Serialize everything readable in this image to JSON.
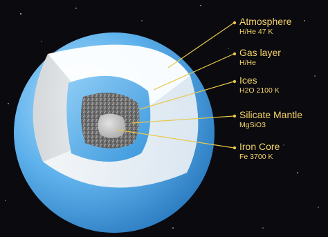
{
  "labels": [
    {
      "id": "atmosphere",
      "title": "Atmosphere",
      "sub": "H/He 47 K"
    },
    {
      "id": "gas-layer",
      "title": "Gas layer",
      "sub": "H/He"
    },
    {
      "id": "ices",
      "title": "Ices",
      "sub": "H2O 2100 K"
    },
    {
      "id": "silicate-mantle",
      "title": "Silicate Mantle",
      "sub": "MgSiO3"
    },
    {
      "id": "iron-core",
      "title": "Iron Core",
      "sub": "Fe 3700 K"
    }
  ],
  "colors": {
    "label_text": "#f5d46a",
    "leader_line": "#e8c84a",
    "atmosphere_blue": "#5fb2ec",
    "ice_blue": "#4aa6e6",
    "core_gray": "#c9c9c9",
    "mantle_speckle": "#6e6e6e",
    "space": "#0a0a0f"
  }
}
